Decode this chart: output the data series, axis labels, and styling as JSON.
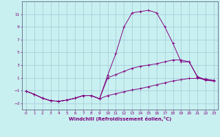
{
  "xlabel": "Windchill (Refroidissement éolien,°C)",
  "background_color": "#c8f0f0",
  "grid_color": "#a0c8d8",
  "line_color": "#800080",
  "spine_color": "#606080",
  "xlim": [
    -0.5,
    23.5
  ],
  "ylim": [
    -4.0,
    13.0
  ],
  "xticks": [
    0,
    1,
    2,
    3,
    4,
    5,
    6,
    7,
    8,
    9,
    10,
    11,
    12,
    13,
    14,
    15,
    16,
    17,
    18,
    19,
    20,
    21,
    22,
    23
  ],
  "yticks": [
    -3,
    -1,
    1,
    3,
    5,
    7,
    9,
    11
  ],
  "series": [
    {
      "x": [
        0,
        1,
        2,
        3,
        4,
        5,
        6,
        7,
        8,
        9,
        10,
        11,
        12,
        13,
        14,
        15,
        16,
        17,
        18,
        19,
        20,
        21,
        22,
        23
      ],
      "y": [
        -1.1,
        -1.6,
        -2.2,
        -2.6,
        -2.7,
        -2.5,
        -2.2,
        -1.8,
        -1.8,
        -2.3,
        1.4,
        4.8,
        9.0,
        11.2,
        11.4,
        11.6,
        11.2,
        9.0,
        6.4,
        3.5,
        3.5,
        1.1,
        0.6,
        0.5
      ]
    },
    {
      "x": [
        0,
        1,
        2,
        3,
        4,
        5,
        6,
        7,
        8,
        9,
        10,
        11,
        12,
        13,
        14,
        15,
        16,
        17,
        18,
        19,
        20,
        21,
        22,
        23
      ],
      "y": [
        -1.1,
        -1.6,
        -2.2,
        -2.6,
        -2.7,
        -2.5,
        -2.2,
        -1.8,
        -1.8,
        -2.3,
        1.0,
        1.5,
        2.0,
        2.5,
        2.8,
        3.0,
        3.2,
        3.5,
        3.8,
        3.8,
        3.5,
        1.2,
        0.7,
        0.5
      ]
    },
    {
      "x": [
        0,
        1,
        2,
        3,
        4,
        5,
        6,
        7,
        8,
        9,
        10,
        11,
        12,
        13,
        14,
        15,
        16,
        17,
        18,
        19,
        20,
        21,
        22,
        23
      ],
      "y": [
        -1.1,
        -1.6,
        -2.2,
        -2.6,
        -2.7,
        -2.5,
        -2.2,
        -1.8,
        -1.8,
        -2.3,
        -1.8,
        -1.5,
        -1.2,
        -0.9,
        -0.7,
        -0.4,
        -0.1,
        0.2,
        0.5,
        0.7,
        0.9,
        0.9,
        0.8,
        0.6
      ]
    }
  ]
}
